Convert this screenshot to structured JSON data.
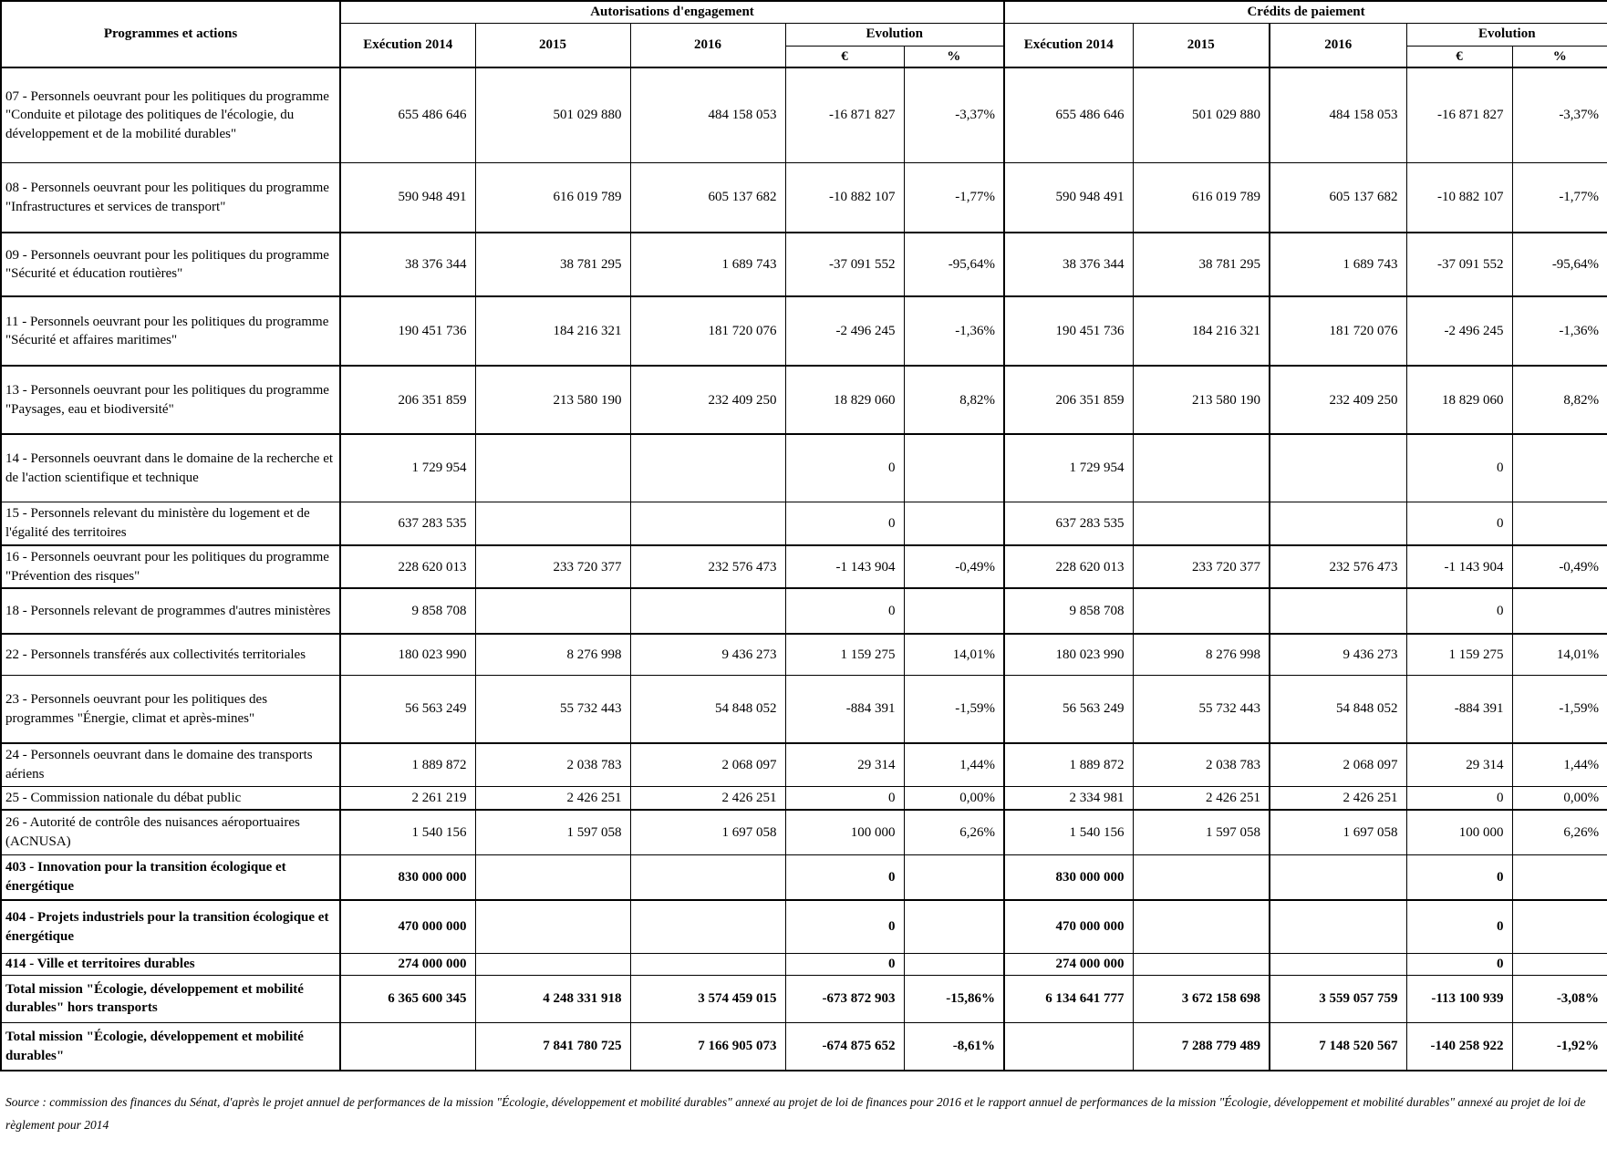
{
  "header": {
    "programs": "Programmes et actions",
    "ae_group": "Autorisations d'engagement",
    "cp_group": "Crédits de paiement",
    "ae_cols": {
      "exec": "Exécution 2014",
      "y2015": "2015",
      "y2016": "2016",
      "evolution": "Evolution",
      "eur": "€",
      "pct": "%"
    },
    "cp_cols": {
      "exec": "Exécution 2014",
      "y2015": "2015",
      "y2016": "2016",
      "evolution": "Evolution",
      "eur": "€",
      "pct": "%"
    }
  },
  "rows": [
    {
      "label": "07 - Personnels oeuvrant pour les politiques du programme \"Conduite et pilotage des politiques de l'écologie, du développement et de la mobilité durables\"",
      "ae": [
        "655 486 646",
        "501 029 880",
        "484 158 053",
        "-16 871 827",
        "-3,37%"
      ],
      "cp": [
        "655 486 646",
        "501 029 880",
        "484 158 053",
        "-16 871 827",
        "-3,37%"
      ],
      "bold": false,
      "thick_top": true
    },
    {
      "label": "08 - Personnels oeuvrant pour les politiques du programme \"Infrastructures et services de transport\"",
      "ae": [
        "590 948 491",
        "616 019 789",
        "605 137 682",
        "-10 882 107",
        "-1,77%"
      ],
      "cp": [
        "590 948 491",
        "616 019 789",
        "605 137 682",
        "-10 882 107",
        "-1,77%"
      ],
      "bold": false,
      "thick_top": false
    },
    {
      "label": "09 - Personnels oeuvrant pour les politiques du programme \"Sécurité et éducation routières\"",
      "ae": [
        "38 376 344",
        "38 781 295",
        "1 689 743",
        "-37 091 552",
        "-95,64%"
      ],
      "cp": [
        "38 376 344",
        "38 781 295",
        "1 689 743",
        "-37 091 552",
        "-95,64%"
      ],
      "bold": false,
      "thick_top": true
    },
    {
      "label": "11 - Personnels oeuvrant pour les politiques du programme \"Sécurité et affaires maritimes\"",
      "ae": [
        "190 451 736",
        "184 216 321",
        "181 720 076",
        "-2 496 245",
        "-1,36%"
      ],
      "cp": [
        "190 451 736",
        "184 216 321",
        "181 720 076",
        "-2 496 245",
        "-1,36%"
      ],
      "bold": false,
      "thick_top": true
    },
    {
      "label": "13 - Personnels oeuvrant pour les politiques du programme \"Paysages, eau et biodiversité\"",
      "ae": [
        "206 351 859",
        "213 580 190",
        "232 409 250",
        "18 829 060",
        "8,82%"
      ],
      "cp": [
        "206 351 859",
        "213 580 190",
        "232 409 250",
        "18 829 060",
        "8,82%"
      ],
      "bold": false,
      "thick_top": true
    },
    {
      "label": "14 - Personnels oeuvrant dans le domaine de la recherche et de l'action scientifique et technique",
      "ae": [
        "1 729 954",
        "",
        "",
        "0",
        ""
      ],
      "cp": [
        "1 729 954",
        "",
        "",
        "0",
        ""
      ],
      "bold": false,
      "thick_top": true
    },
    {
      "label": "15 - Personnels relevant du ministère du logement et de l'égalité des territoires",
      "ae": [
        "637 283 535",
        "",
        "",
        "0",
        ""
      ],
      "cp": [
        "637 283 535",
        "",
        "",
        "0",
        ""
      ],
      "bold": false,
      "thick_top": false
    },
    {
      "label": "16 - Personnels oeuvrant pour les politiques du programme \"Prévention des risques\"",
      "ae": [
        "228 620 013",
        "233 720 377",
        "232 576 473",
        "-1 143 904",
        "-0,49%"
      ],
      "cp": [
        "228 620 013",
        "233 720 377",
        "232 576 473",
        "-1 143 904",
        "-0,49%"
      ],
      "bold": false,
      "thick_top": true
    },
    {
      "label": "18 - Personnels relevant de programmes d'autres ministères",
      "ae": [
        "9 858 708",
        "",
        "",
        "0",
        ""
      ],
      "cp": [
        "9 858 708",
        "",
        "",
        "0",
        ""
      ],
      "bold": false,
      "thick_top": true
    },
    {
      "label": "22 - Personnels transférés aux collectivités territoriales",
      "ae": [
        "180 023 990",
        "8 276 998",
        "9 436 273",
        "1 159 275",
        "14,01%"
      ],
      "cp": [
        "180 023 990",
        "8 276 998",
        "9 436 273",
        "1 159 275",
        "14,01%"
      ],
      "bold": false,
      "thick_top": true
    },
    {
      "label": "23 - Personnels oeuvrant pour les politiques des programmes \"Énergie, climat et après-mines\"",
      "ae": [
        "56 563 249",
        "55 732 443",
        "54 848 052",
        "-884 391",
        "-1,59%"
      ],
      "cp": [
        "56 563 249",
        "55 732 443",
        "54 848 052",
        "-884 391",
        "-1,59%"
      ],
      "bold": false,
      "thick_top": false
    },
    {
      "label": "24 - Personnels oeuvrant dans le domaine des transports aériens",
      "ae": [
        "1 889 872",
        "2 038 783",
        "2 068 097",
        "29 314",
        "1,44%"
      ],
      "cp": [
        "1 889 872",
        "2 038 783",
        "2 068 097",
        "29 314",
        "1,44%"
      ],
      "bold": false,
      "thick_top": true
    },
    {
      "label": "25 - Commission nationale du débat public",
      "ae": [
        "2 261 219",
        "2 426 251",
        "2 426 251",
        "0",
        "0,00%"
      ],
      "cp": [
        "2 334 981",
        "2 426 251",
        "2 426 251",
        "0",
        "0,00%"
      ],
      "bold": false,
      "thick_top": false
    },
    {
      "label": "26 - Autorité de contrôle des nuisances aéroportuaires (ACNUSA)",
      "ae": [
        "1 540 156",
        "1 597 058",
        "1 697 058",
        "100 000",
        "6,26%"
      ],
      "cp": [
        "1 540 156",
        "1 597 058",
        "1 697 058",
        "100 000",
        "6,26%"
      ],
      "bold": false,
      "thick_top": true
    },
    {
      "label": "403 - Innovation pour la transition écologique et énergétique",
      "ae": [
        "830 000 000",
        "",
        "",
        "0",
        ""
      ],
      "cp": [
        "830 000 000",
        "",
        "",
        "0",
        ""
      ],
      "bold": true,
      "thick_top": false
    },
    {
      "label": "404 - Projets industriels pour la transition écologique et énergétique",
      "ae": [
        "470 000 000",
        "",
        "",
        "0",
        ""
      ],
      "cp": [
        "470 000 000",
        "",
        "",
        "0",
        ""
      ],
      "bold": true,
      "thick_top": true
    },
    {
      "label": "414 - Ville et territoires durables",
      "ae": [
        "274 000 000",
        "",
        "",
        "0",
        ""
      ],
      "cp": [
        "274 000 000",
        "",
        "",
        "0",
        ""
      ],
      "bold": true,
      "thick_top": false
    },
    {
      "label": "Total mission \"Écologie, développement et mobilité durables\" hors transports",
      "ae": [
        "6 365 600 345",
        "4 248 331 918",
        "3 574 459 015",
        "-673 872 903",
        "-15,86%"
      ],
      "cp": [
        "6 134 641 777",
        "3 672 158 698",
        "3 559 057 759",
        "-113 100 939",
        "-3,08%"
      ],
      "bold": true,
      "thick_top": false
    },
    {
      "label": "Total mission \"Écologie, développement et mobilité durables\"",
      "ae": [
        "",
        "7 841 780 725",
        "7 166 905 073",
        "-674 875 652",
        "-8,61%"
      ],
      "cp": [
        "",
        "7 288 779 489",
        "7 148 520 567",
        "-140 258 922",
        "-1,92%"
      ],
      "bold": true,
      "thick_top": false
    }
  ],
  "source": "Source : commission des finances du Sénat, d'après le projet annuel de performances de la mission \"Écologie, développement et mobilité durables\" annexé au projet de loi de finances pour 2016 et le rapport annuel de performances de la mission \"Écologie, développement et mobilité durables\" annexé au projet de loi de règlement pour 2014"
}
